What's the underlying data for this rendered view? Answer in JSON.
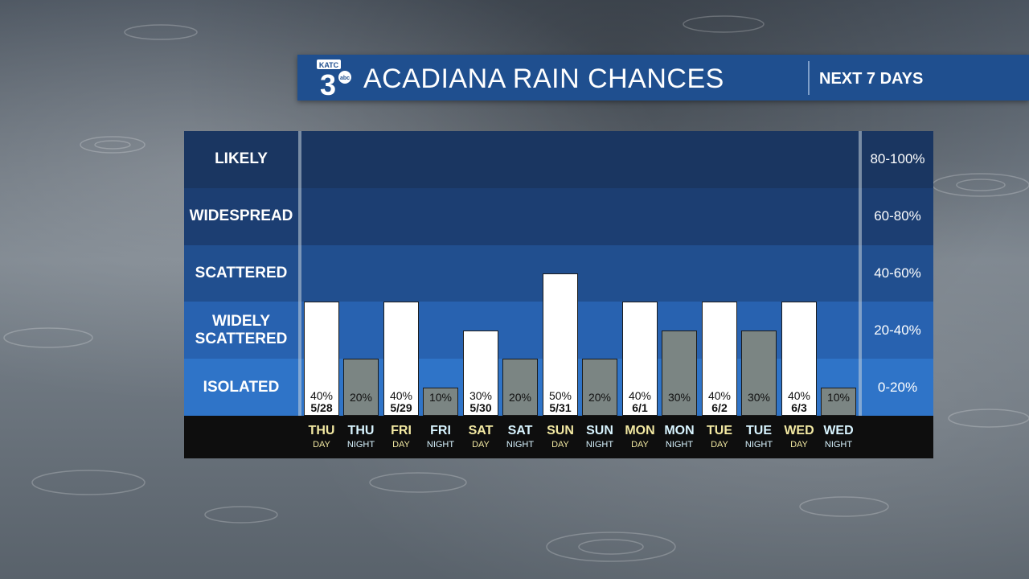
{
  "header": {
    "logo": {
      "top_text": "KATC",
      "numeral": "3",
      "network": "abc"
    },
    "title": "ACADIANA RAIN CHANCES",
    "subtitle": "NEXT 7 DAYS"
  },
  "colors": {
    "header_blue": "#1f4f8f",
    "band_likely": "#1a3661",
    "band_widespread": "#1c3e72",
    "band_scattered": "#214f8f",
    "band_widely_scattered": "#2862b0",
    "band_isolated": "#2f74c8",
    "day_bar": "#ffffff",
    "night_bar": "#7b8583",
    "day_text": "#f3e9a2",
    "night_text": "#d8f4ff"
  },
  "chart_data": {
    "type": "bar",
    "title": "ACADIANA RAIN CHANCES",
    "subtitle": "NEXT 7 DAYS",
    "ylim": [
      0,
      100
    ],
    "unit": "%",
    "bands": [
      {
        "label": "LIKELY",
        "range": "80-100%",
        "min": 80,
        "max": 100
      },
      {
        "label": "WIDESPREAD",
        "range": "60-80%",
        "min": 60,
        "max": 80
      },
      {
        "label": "SCATTERED",
        "range": "40-60%",
        "min": 40,
        "max": 60
      },
      {
        "label": "WIDELY SCATTERED",
        "range": "20-40%",
        "min": 20,
        "max": 40
      },
      {
        "label": "ISOLATED",
        "range": "0-20%",
        "min": 0,
        "max": 20
      }
    ],
    "periods": [
      {
        "day": "THU",
        "period": "DAY",
        "value": 40,
        "label": "40%",
        "date": "5/28"
      },
      {
        "day": "THU",
        "period": "NIGHT",
        "value": 20,
        "label": "20%",
        "date": ""
      },
      {
        "day": "FRI",
        "period": "DAY",
        "value": 40,
        "label": "40%",
        "date": "5/29"
      },
      {
        "day": "FRI",
        "period": "NIGHT",
        "value": 10,
        "label": "10%",
        "date": ""
      },
      {
        "day": "SAT",
        "period": "DAY",
        "value": 30,
        "label": "30%",
        "date": "5/30"
      },
      {
        "day": "SAT",
        "period": "NIGHT",
        "value": 20,
        "label": "20%",
        "date": ""
      },
      {
        "day": "SUN",
        "period": "DAY",
        "value": 50,
        "label": "50%",
        "date": "5/31"
      },
      {
        "day": "SUN",
        "period": "NIGHT",
        "value": 20,
        "label": "20%",
        "date": ""
      },
      {
        "day": "MON",
        "period": "DAY",
        "value": 40,
        "label": "40%",
        "date": "6/1"
      },
      {
        "day": "MON",
        "period": "NIGHT",
        "value": 30,
        "label": "30%",
        "date": ""
      },
      {
        "day": "TUE",
        "period": "DAY",
        "value": 40,
        "label": "40%",
        "date": "6/2"
      },
      {
        "day": "TUE",
        "period": "NIGHT",
        "value": 30,
        "label": "30%",
        "date": ""
      },
      {
        "day": "WED",
        "period": "DAY",
        "value": 40,
        "label": "40%",
        "date": "6/3"
      },
      {
        "day": "WED",
        "period": "NIGHT",
        "value": 10,
        "label": "10%",
        "date": ""
      }
    ]
  }
}
